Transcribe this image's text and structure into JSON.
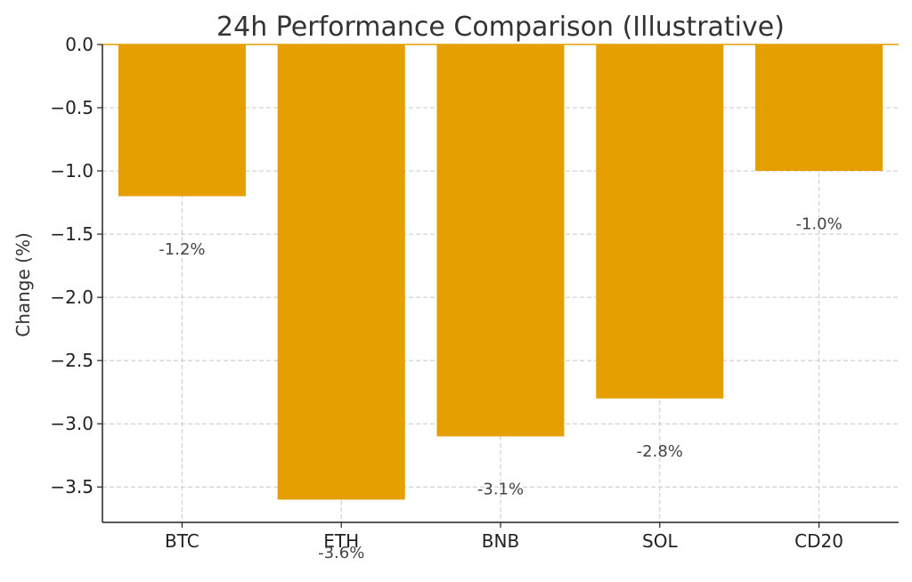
{
  "chart_data": {
    "type": "bar",
    "title": "24h Performance Comparison (Illustrative)",
    "xlabel": "",
    "ylabel": "Change (%)",
    "categories": [
      "BTC",
      "ETH",
      "BNB",
      "SOL",
      "CD20"
    ],
    "values": [
      -1.2,
      -3.6,
      -3.1,
      -2.8,
      -1.0
    ],
    "data_labels": [
      "-1.2%",
      "-3.6%",
      "-3.1%",
      "-2.8%",
      "-1.0%"
    ],
    "ylim": [
      -3.78,
      0.0
    ],
    "yticks": [
      0.0,
      -0.5,
      -1.0,
      -1.5,
      -2.0,
      -2.5,
      -3.0,
      -3.5
    ],
    "ytick_labels": [
      "0.0",
      "−0.5",
      "−1.0",
      "−1.5",
      "−2.0",
      "−2.5",
      "−3.0",
      "−3.5"
    ],
    "grid": true,
    "bar_color": "#E69F00",
    "baseline_color": "#E69F00"
  }
}
